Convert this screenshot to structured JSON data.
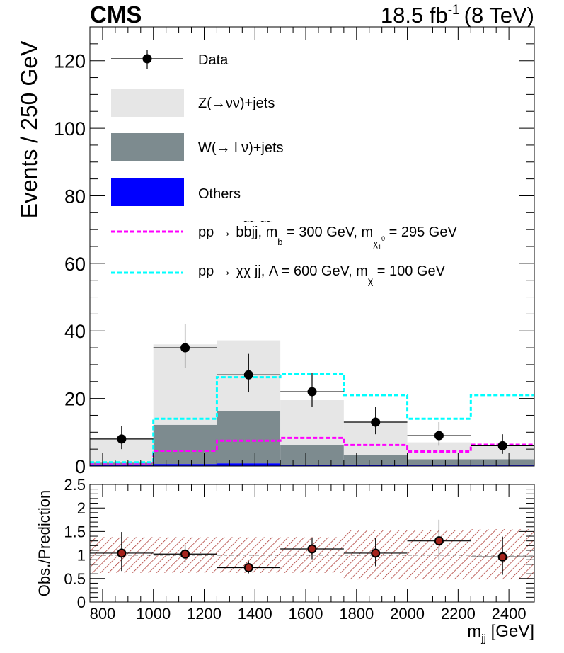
{
  "header": {
    "experiment": "CMS",
    "lumi_value": "18.5 fb",
    "lumi_exponent": "-1",
    "energy": "(8 TeV)"
  },
  "colors": {
    "z_nunu": "#e6e6e6",
    "w_lnu": "#7d8b8f",
    "others": "#0000ff",
    "sbottom": "#ff00ff",
    "dm": "#00ffff",
    "data": "#000000",
    "ratio_band": "#a5231c"
  },
  "chart_data": [
    {
      "type": "stacked-histogram",
      "ylabel": "Events / 250 GeV",
      "xlim": [
        750,
        2500
      ],
      "ylim": [
        0,
        130
      ],
      "yticks": [
        0,
        20,
        40,
        60,
        80,
        100,
        120
      ],
      "bin_edges": [
        750,
        1000,
        1250,
        1500,
        1750,
        2000,
        2250,
        2500
      ],
      "bin_centers": [
        875,
        1125,
        1375,
        1625,
        1875,
        2125,
        2375
      ],
      "stack": [
        {
          "name": "Others",
          "color": "#0000ff",
          "values": [
            0.3,
            0.6,
            0.8,
            0.4,
            0.3,
            0.2,
            0.2
          ]
        },
        {
          "name": "W(→ l ν)+jets",
          "color": "#7d8b8f",
          "values": [
            0.7,
            11.6,
            15.4,
            5.8,
            3.0,
            1.8,
            1.8
          ]
        },
        {
          "name": "Z(→νν)+jets",
          "color": "#e6e6e6",
          "values": [
            7.0,
            23.8,
            21.0,
            13.3,
            9.7,
            5.0,
            4.0
          ]
        }
      ],
      "data": {
        "name": "Data",
        "values": [
          8,
          35,
          27,
          22,
          13,
          9,
          6
        ],
        "err_low": [
          3.0,
          6.0,
          5.2,
          4.6,
          3.6,
          3.0,
          2.4
        ],
        "err_high": [
          3.8,
          7.0,
          6.2,
          5.6,
          4.6,
          4.0,
          3.4
        ]
      },
      "signals": [
        {
          "name": "sbottom",
          "style": "dashed",
          "color": "#ff00ff",
          "values": [
            0.8,
            4.5,
            7.5,
            8.3,
            6.2,
            4.3,
            6.3
          ]
        },
        {
          "name": "dm",
          "style": "dashed",
          "color": "#00ffff",
          "values": [
            1.1,
            14.0,
            26.3,
            27.3,
            21.0,
            14.0,
            21.0
          ]
        }
      ],
      "legend": {
        "placement": "top-left",
        "data": "Data",
        "z_nunu": "Z(→νν)+jets",
        "w_lnu": "W(→ l ν)+jets",
        "others": "Others",
        "sbottom": {
          "prefix": "pp → ",
          "particles": "bbjj",
          "mass1_label": ", m",
          "mass1_sub": "b",
          "mass1_value": " = 300 GeV, m",
          "mass2_sub_main": "χ",
          "mass2_sub_index": "1",
          "mass2_sup": "0",
          "mass2_value": " = 295 GeV"
        },
        "dm": {
          "text": "pp → χχ jj, Λ = 600 GeV, m",
          "sub": "χ",
          "tail": " = 100 GeV"
        }
      }
    },
    {
      "type": "ratio",
      "ylabel": "Obs./Prediction",
      "xlabel": "m",
      "xlabel_sub": "jj",
      "xlabel_unit": " [GeV]",
      "xlim": [
        750,
        2500
      ],
      "ylim": [
        0,
        2.5
      ],
      "yticks": [
        0,
        0.5,
        1,
        1.5,
        2,
        2.5
      ],
      "ytick_labels": [
        "0",
        "0.5",
        "1",
        "1.5",
        "2",
        "2.5"
      ],
      "xticks": [
        800,
        1000,
        1200,
        1400,
        1600,
        1800,
        2000,
        2200,
        2400
      ],
      "xtick_labels": [
        "800",
        "1000",
        "1200",
        "1400",
        "1600",
        "1800",
        "2000",
        "2200",
        "2400"
      ],
      "reference": 1.0,
      "band_low": [
        0.62,
        0.62,
        0.62,
        0.62,
        0.48,
        0.48,
        0.48
      ],
      "band_high": [
        1.38,
        1.38,
        1.38,
        1.38,
        1.52,
        1.52,
        1.55
      ],
      "points": [
        1.04,
        1.02,
        0.73,
        1.13,
        1.04,
        1.3,
        0.96
      ],
      "err_low": [
        0.38,
        0.18,
        0.12,
        0.22,
        0.28,
        0.4,
        0.38
      ],
      "err_high": [
        0.45,
        0.2,
        0.14,
        0.24,
        0.32,
        0.45,
        0.43
      ]
    }
  ]
}
